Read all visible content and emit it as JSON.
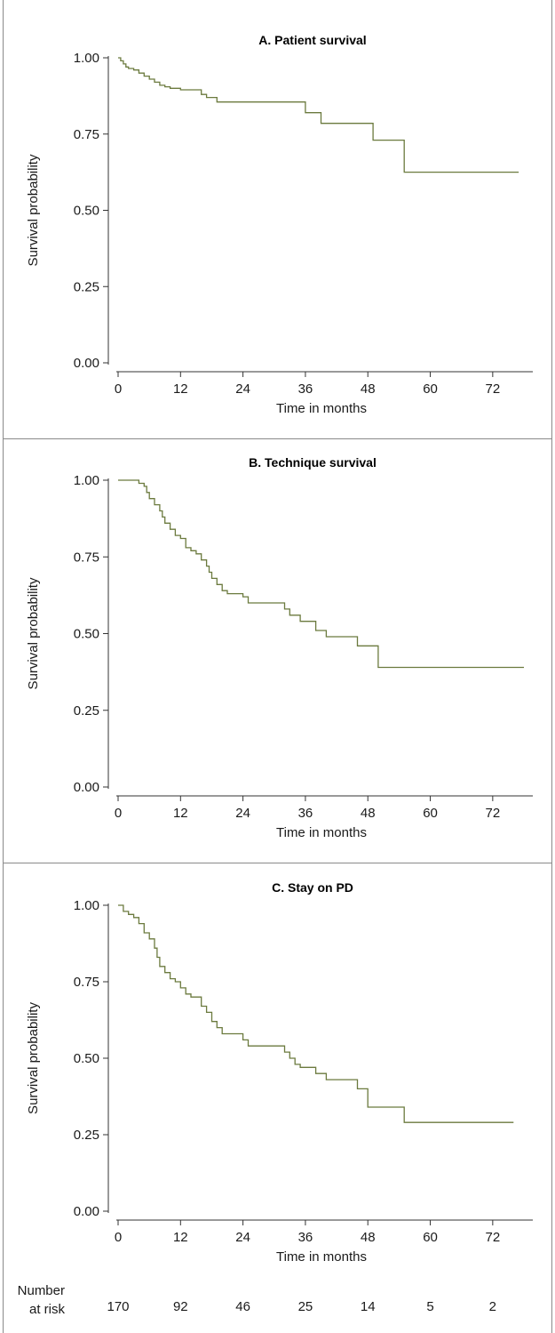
{
  "line_color": "#6b7a3e",
  "divider_color": "#8a8a8a",
  "chart_data": [
    {
      "type": "line",
      "title": "A. Patient survival",
      "xlabel": "Time in months",
      "ylabel": "Survival probability",
      "xlim": [
        0,
        78
      ],
      "ylim": [
        0,
        1
      ],
      "xticks": [
        0,
        12,
        24,
        36,
        48,
        60,
        72
      ],
      "yticks": [
        "0.00",
        "0.25",
        "0.50",
        "0.75",
        "1.00"
      ],
      "grid": false,
      "series": [
        {
          "x": [
            0,
            0.5,
            1,
            1.5,
            2,
            3,
            4,
            5,
            6,
            7,
            8,
            9,
            10,
            12,
            16,
            17,
            19,
            36,
            37,
            39,
            49,
            50,
            55,
            56,
            77
          ],
          "y": [
            1.0,
            0.99,
            0.98,
            0.97,
            0.965,
            0.96,
            0.95,
            0.94,
            0.93,
            0.92,
            0.91,
            0.905,
            0.9,
            0.895,
            0.88,
            0.87,
            0.855,
            0.82,
            0.82,
            0.785,
            0.73,
            0.73,
            0.625,
            0.625,
            0.625
          ]
        }
      ]
    },
    {
      "type": "line",
      "title": "B. Technique survival",
      "xlabel": "Time in months",
      "ylabel": "Survival probability",
      "xlim": [
        0,
        78
      ],
      "ylim": [
        0,
        1
      ],
      "xticks": [
        0,
        12,
        24,
        36,
        48,
        60,
        72
      ],
      "yticks": [
        "0.00",
        "0.25",
        "0.50",
        "0.75",
        "1.00"
      ],
      "grid": false,
      "series": [
        {
          "x": [
            0,
            4,
            5,
            5.5,
            6,
            7,
            8,
            8.5,
            9,
            10,
            11,
            12,
            13,
            14,
            15,
            16,
            17,
            17.5,
            18,
            19,
            20,
            21,
            24,
            25,
            32,
            33,
            35,
            36,
            38,
            40,
            41,
            46,
            48,
            50,
            78
          ],
          "y": [
            1.0,
            0.99,
            0.98,
            0.96,
            0.94,
            0.92,
            0.9,
            0.88,
            0.86,
            0.84,
            0.82,
            0.81,
            0.78,
            0.77,
            0.76,
            0.74,
            0.72,
            0.7,
            0.68,
            0.66,
            0.64,
            0.63,
            0.62,
            0.6,
            0.58,
            0.56,
            0.54,
            0.54,
            0.51,
            0.49,
            0.49,
            0.46,
            0.46,
            0.39,
            0.39
          ]
        }
      ]
    },
    {
      "type": "line",
      "title": "C. Stay on PD",
      "xlabel": "Time in months",
      "ylabel": "Survival probability",
      "xlim": [
        0,
        78
      ],
      "ylim": [
        0,
        1
      ],
      "xticks": [
        0,
        12,
        24,
        36,
        48,
        60,
        72
      ],
      "yticks": [
        "0.00",
        "0.25",
        "0.50",
        "0.75",
        "1.00"
      ],
      "grid": false,
      "series": [
        {
          "x": [
            0,
            1,
            2,
            3,
            4,
            5,
            6,
            7,
            7.5,
            8,
            9,
            10,
            11,
            12,
            13,
            14,
            16,
            17,
            18,
            19,
            20,
            21,
            24,
            25,
            32,
            33,
            34,
            35,
            36,
            38,
            40,
            41,
            46,
            48,
            55,
            56,
            76
          ],
          "y": [
            1.0,
            0.98,
            0.97,
            0.96,
            0.94,
            0.91,
            0.89,
            0.86,
            0.83,
            0.8,
            0.78,
            0.76,
            0.75,
            0.73,
            0.71,
            0.7,
            0.67,
            0.65,
            0.62,
            0.6,
            0.58,
            0.58,
            0.56,
            0.54,
            0.52,
            0.5,
            0.48,
            0.47,
            0.47,
            0.45,
            0.43,
            0.43,
            0.4,
            0.34,
            0.29,
            0.29,
            0.29
          ]
        }
      ]
    }
  ],
  "risk_table": {
    "label_line1": "Number",
    "label_line2": "at risk",
    "times": [
      0,
      12,
      24,
      36,
      48,
      60,
      72
    ],
    "values": [
      "170",
      "92",
      "46",
      "25",
      "14",
      "5",
      "2"
    ]
  }
}
